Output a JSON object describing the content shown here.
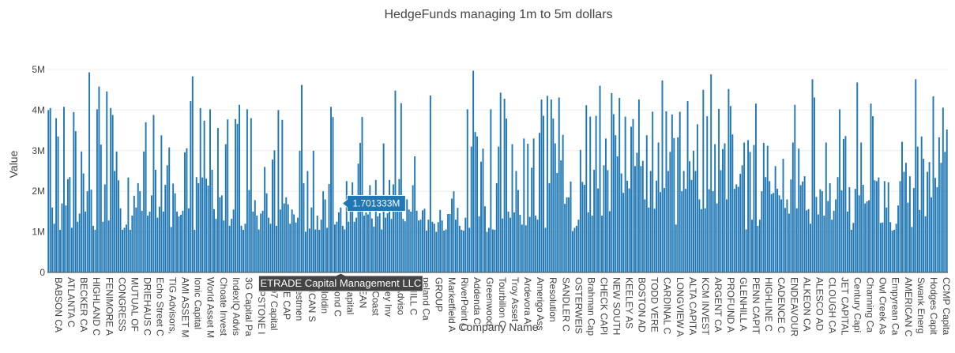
{
  "colors": {
    "bar": "#1f77b4",
    "tooltip_x": "#444444",
    "tooltip_y": "#1f77b4"
  },
  "chart_data": {
    "type": "bar",
    "title": "HedgeFunds managing 1m to 5m dollars",
    "xlabel": "Company Name",
    "ylabel": "Value",
    "ylim": [
      0,
      5000000
    ],
    "yticks": [
      0,
      1000000,
      2000000,
      3000000,
      4000000,
      5000000
    ],
    "ytick_labels": [
      "0",
      "1M",
      "2M",
      "3M",
      "4M",
      "5M"
    ],
    "grid": true,
    "legend": "none",
    "visible_category_labels": [
      "BABSON CA",
      "ATLANTA C",
      "BECKER CA",
      "HIGHLAND C",
      "FENIMORE A",
      "CONGRESS",
      "MUTUAL OF",
      "DRIEHAUS C",
      "Echo Street C",
      "TIG Advisors,",
      "AMI ASSET M",
      "Ionic Capital",
      "World Asset M",
      "Choate Invest",
      "IndexIQ Advis",
      "3G Capital Pa",
      "CAPSTONE I",
      "1607 Capital",
      "ORE CAP",
      "Investmen",
      "ERICAN S",
      "C Holdin",
      "g Pond C",
      "a Capital",
      "PLEAN",
      "ter Coast",
      "lesley Inv",
      "ld Adviso",
      "K HILL C",
      "peland Ca",
      "GROUP",
      "Marketfield A",
      "RiverPoint C",
      "Addenda C",
      "Greenwood",
      "Tourbillon C",
      "Troy Asset",
      "Ardevora A",
      "Amerigo Ass",
      "Resolution",
      "SANDLER C",
      "OSTERWEIS",
      "Brahman Cap",
      "CHECK CAPI",
      "NEW SOUTH",
      "KEELEY AS",
      "BOSTON AD",
      "TODD VERE",
      "CARDINAL C",
      "LONGVIEW A",
      "ALTA CAPITA",
      "KCM INVEST",
      "ARGENT CA",
      "PROFUND A",
      "GLENHILL A",
      "PENN CAPIT",
      "HIGHLINE C",
      "CADENCE C",
      "ENDEAVOUR",
      "ALKEON CA",
      "ALESCO AD",
      "CLOUGH CA",
      "JET CAPITAL",
      "Century Capi",
      "Channing Ca",
      "Owl Creek As",
      "Empyrean Ca",
      "AMERICAN C",
      "Swank Energ",
      "Hodges Capit",
      "CCMP Capita"
    ],
    "values": [
      4000000,
      4050000,
      1600000,
      1200000,
      3800000,
      3350000,
      1050000,
      1700000,
      4080000,
      1650000,
      2300000,
      2350000,
      1100000,
      3950000,
      3480000,
      1250000,
      1450000,
      2980000,
      2440000,
      1500000,
      2000000,
      4930000,
      2040000,
      1150000,
      1050000,
      4020000,
      4580000,
      3150000,
      1250000,
      2170000,
      4460000,
      1280000,
      4050000,
      3880000,
      2500000,
      2980000,
      2270000,
      1580000,
      1050000,
      1100000,
      1180000,
      2340000,
      1050000,
      1400000,
      1890000,
      1600000,
      2200000,
      2000000,
      1520000,
      2980000,
      3700000,
      1400000,
      1500000,
      1900000,
      3880000,
      2530000,
      1350000,
      1620000,
      3380000,
      1500000,
      2160000,
      2640000,
      3080000,
      1120000,
      2190000,
      1950000,
      1500000,
      1380000,
      1420000,
      1520000,
      2960000,
      3060000,
      1580000,
      4220000,
      4830000,
      1050000,
      2350000,
      2200000,
      4050000,
      2340000,
      3740000,
      2310000,
      2140000,
      4020000,
      2530000,
      1560000,
      1320000,
      3560000,
      1850000,
      1900000,
      1280000,
      3160000,
      3770000,
      1150000,
      1320000,
      1550000,
      3780000,
      3660000,
      4130000,
      1150000,
      1050000,
      1200000,
      4020000,
      2030000,
      3800000,
      1500000,
      1780000,
      1400000,
      1060000,
      1450000,
      1520000,
      2600000,
      1950000,
      1350000,
      1200000,
      2780000,
      3010000,
      1150000,
      4000000,
      1550000,
      3760000,
      1700000,
      1850000,
      1680000,
      1200000,
      1550000,
      1430000,
      1230000,
      1350000,
      3000000,
      4620000,
      2200000,
      1000000,
      2500000,
      1080000,
      1600000,
      3000000,
      1060000,
      1400000,
      1050000,
      1300000,
      2000000,
      1800000,
      1100000,
      2180000,
      4080000,
      3830000,
      1180000,
      1250000,
      1480000,
      1600000,
      1150000,
      1060000,
      2250000,
      1250000,
      1900000,
      2220000,
      1250000,
      1350000,
      2680000,
      3190000,
      3830000,
      1400000,
      1480000,
      1430000,
      2150000,
      1330000,
      1130000,
      2280000,
      1380000,
      1460000,
      1060000,
      3180000,
      1350000,
      1460000,
      2280000,
      1320000,
      2170000,
      4480000,
      1580000,
      2300000,
      4170000,
      1320000,
      1260000,
      1800000,
      1550000,
      1500000,
      2150000,
      2860000,
      1520000,
      1280000,
      1300000,
      1530000,
      1570000,
      1030000,
      1300000,
      4360000,
      1250000,
      1200000,
      1000000,
      1240000,
      1540000,
      1280000,
      1030000,
      1060000,
      1440000,
      1440000,
      1820000,
      2000000,
      1300000,
      1590000,
      1150000,
      1050000,
      1030000,
      1350000,
      4020000,
      1100000,
      3100000,
      4970000,
      3460000,
      3350000,
      1380000,
      2730000,
      3050000,
      1630000,
      1000000,
      1100000,
      4020000,
      1060000,
      1050000,
      2200000,
      3100000,
      4430000,
      1330000,
      4280000,
      3790000,
      1500000,
      1350000,
      3160000,
      1480000,
      2500000,
      2030000,
      1420000,
      1180000,
      3300000,
      1160000,
      3170000,
      1370000,
      2580000,
      3300000,
      1400000,
      1300000,
      3440000,
      4260000,
      3860000,
      1100000,
      4350000,
      2200000,
      4260000,
      3790000,
      3180000,
      2450000,
      4310000,
      2760000,
      3390000,
      1690000,
      1850000,
      1850000,
      2240000,
      1020000,
      1100000,
      1150000,
      1300000,
      3020000,
      2230000,
      2160000,
      4120000,
      1480000,
      3840000,
      1400000,
      2530000,
      3860000,
      2070000,
      4600000,
      1400000,
      2640000,
      3300000,
      2520000,
      1510000,
      4420000,
      3900000,
      3380000,
      2860000,
      4300000,
      2440000,
      1960000,
      3840000,
      2260000,
      2070000,
      3590000,
      3780000,
      2620000,
      2950000,
      4260000,
      2620000,
      2750000,
      1800000,
      3380000,
      1600000,
      2500000,
      3960000,
      1570000,
      2260000,
      3200000,
      1980000,
      4730000,
      2080000,
      3970000,
      2500000,
      2970000,
      3890000,
      3310000,
      1180000,
      3330000,
      3960000,
      2000000,
      2500000,
      2060000,
      4220000,
      2740000,
      2280000,
      3000000,
      2500000,
      3650000,
      1800000,
      1560000,
      4500000,
      1580000,
      3850000,
      2050000,
      4880000,
      2000000,
      3160000,
      1700000,
      4030000,
      2520000,
      3040000,
      3180000,
      1800000,
      4520000,
      4100000,
      3400000,
      2060000,
      2170000,
      2110000,
      2430000,
      2640000,
      3200000,
      1060000,
      3260000,
      2970000,
      1300000,
      3140000,
      4160000,
      1150000,
      1300000,
      2000000,
      3190000,
      2350000,
      3120000,
      2250000,
      1930000,
      1960000,
      2620000,
      2060000,
      1900000,
      1800000,
      2800000,
      1590000,
      1800000,
      1450000,
      2290000,
      3200000,
      4130000,
      1580000,
      3050000,
      2150000,
      2240000,
      2370000,
      1530000,
      1560000,
      1200000,
      4760000,
      4310000,
      1860000,
      1430000,
      2050000,
      2000000,
      1400000,
      3200000,
      1760000,
      2200000,
      1300000,
      1520000,
      1800000,
      2350000,
      4020000,
      2020000,
      3290000,
      3360000,
      1500000,
      2100000,
      1050000,
      1220000,
      2060000,
      4680000,
      1900000,
      3200000,
      2160000,
      1700000,
      1750000,
      1780000,
      4160000,
      3850000,
      2270000,
      2250000,
      2340000,
      1220000,
      1230000,
      2250000,
      1600000,
      2220000,
      1240000,
      1030000,
      1050000,
      1200000,
      1650000,
      2250000,
      3220000,
      2480000,
      2700000,
      1720000,
      2370000,
      1120000,
      2080000,
      4760000,
      3100000,
      1540000,
      3350000,
      2800000,
      1380000,
      2480000,
      2720000,
      1850000,
      4340000,
      2330000,
      2100000,
      3330000,
      2700000,
      4060000,
      2970000,
      3520000
    ],
    "hover": {
      "category": "ETRADE Capital Management LLC",
      "value_label": "1.701333M",
      "value": 1701333
    }
  }
}
